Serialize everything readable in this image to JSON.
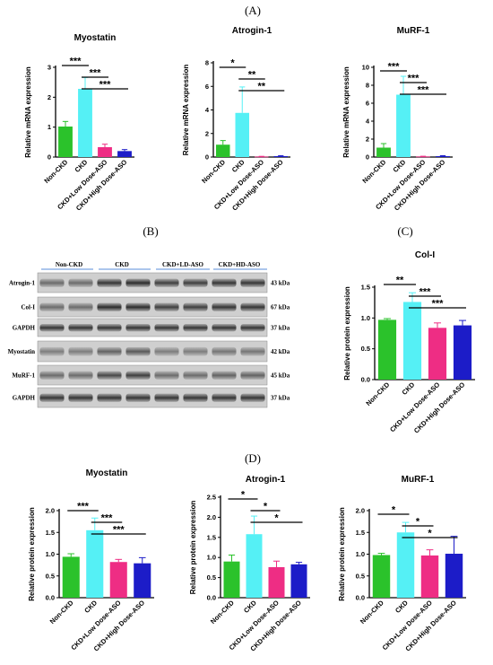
{
  "panel_labels": {
    "A": "(A)",
    "B": "(B)",
    "C": "(C)",
    "D": "(D)"
  },
  "colors": {
    "green": "#2bc22b",
    "cyan": "#55f0f5",
    "pink": "#ee2d84",
    "blue": "#1c1cc8"
  },
  "chart_data": [
    {
      "id": "A1",
      "type": "bar",
      "title": "Myostatin",
      "ylabel": "Relative mRNA expression",
      "categories": [
        "Non-CKD",
        "CKD",
        "CKD+Low Dose-ASO",
        "CKD+High Dose-ASO"
      ],
      "values": [
        1.02,
        2.28,
        0.33,
        0.2
      ],
      "errors": [
        0.17,
        0.38,
        0.1,
        0.05
      ],
      "ylim": [
        0,
        3
      ],
      "yticks": [
        0,
        1,
        2,
        3
      ],
      "significance": [
        {
          "from": 0,
          "to": 1,
          "label": "***"
        },
        {
          "from": 1,
          "to": 2,
          "label": "***"
        },
        {
          "from": 1,
          "to": 3,
          "label": "***"
        }
      ]
    },
    {
      "id": "A2",
      "type": "bar",
      "title": "Atrogin-1",
      "ylabel": "Relative mRNA expression",
      "categories": [
        "Non-CKD",
        "CKD",
        "CKD+Low Dose-ASO",
        "CKD+High Dose-ASO"
      ],
      "values": [
        1.05,
        3.75,
        0.04,
        0.08
      ],
      "errors": [
        0.35,
        2.2,
        0.02,
        0.04
      ],
      "ylim": [
        0,
        8
      ],
      "yticks": [
        0,
        2,
        4,
        6,
        8
      ],
      "significance": [
        {
          "from": 0,
          "to": 1,
          "label": "*"
        },
        {
          "from": 1,
          "to": 2,
          "label": "**"
        },
        {
          "from": 1,
          "to": 3,
          "label": "**"
        }
      ]
    },
    {
      "id": "A3",
      "type": "bar",
      "title": "MuRF-1",
      "ylabel": "Relative mRNA expression",
      "categories": [
        "Non-CKD",
        "CKD",
        "CKD+Low Dose-ASO",
        "CKD+High Dose-ASO"
      ],
      "values": [
        1.05,
        6.95,
        0.06,
        0.1
      ],
      "errors": [
        0.45,
        2.05,
        0.03,
        0.05
      ],
      "ylim": [
        0,
        10
      ],
      "yticks": [
        0,
        2,
        4,
        6,
        8,
        10
      ],
      "significance": [
        {
          "from": 0,
          "to": 1,
          "label": "***"
        },
        {
          "from": 1,
          "to": 2,
          "label": "***"
        },
        {
          "from": 1,
          "to": 3,
          "label": "***"
        }
      ]
    },
    {
      "id": "C",
      "type": "bar",
      "title": "Col-I",
      "ylabel": "Relative protein expression",
      "categories": [
        "Non-CKD",
        "CKD",
        "CKD+Low Dose-ASO",
        "CKD+High Dose-ASO"
      ],
      "values": [
        0.97,
        1.26,
        0.84,
        0.88
      ],
      "errors": [
        0.02,
        0.15,
        0.08,
        0.08
      ],
      "ylim": [
        0,
        1.5
      ],
      "yticks": [
        0.0,
        0.5,
        1.0,
        1.5
      ],
      "significance": [
        {
          "from": 0,
          "to": 1,
          "label": "**"
        },
        {
          "from": 1,
          "to": 2,
          "label": "***"
        },
        {
          "from": 1,
          "to": 3,
          "label": "***"
        }
      ]
    },
    {
      "id": "D1",
      "type": "bar",
      "title": "Myostatin",
      "ylabel": "Relative protein expression",
      "categories": [
        "Non-CKD",
        "CKD",
        "CKD+Low Dose-ASO",
        "CKD+High Dose-ASO"
      ],
      "values": [
        0.94,
        1.55,
        0.82,
        0.79
      ],
      "errors": [
        0.07,
        0.28,
        0.06,
        0.13
      ],
      "ylim": [
        0,
        2.0
      ],
      "yticks": [
        0.0,
        0.5,
        1.0,
        1.5,
        2.0
      ],
      "significance": [
        {
          "from": 0,
          "to": 1,
          "label": "***"
        },
        {
          "from": 1,
          "to": 2,
          "label": "***"
        },
        {
          "from": 1,
          "to": 3,
          "label": "***"
        }
      ]
    },
    {
      "id": "D2",
      "type": "bar",
      "title": "Atrogin-1",
      "ylabel": "Relative protein expression",
      "categories": [
        "Non-CKD",
        "CKD",
        "CKD+Low Dose-ASO",
        "CKD+High Dose-ASO"
      ],
      "values": [
        0.9,
        1.58,
        0.76,
        0.83
      ],
      "errors": [
        0.16,
        0.45,
        0.15,
        0.05
      ],
      "ylim": [
        0,
        2.5
      ],
      "yticks": [
        0.0,
        0.5,
        1.0,
        1.5,
        2.0,
        2.5
      ],
      "significance": [
        {
          "from": 0,
          "to": 1,
          "label": "*"
        },
        {
          "from": 1,
          "to": 2,
          "label": "*"
        },
        {
          "from": 1,
          "to": 3,
          "label": "*"
        }
      ]
    },
    {
      "id": "D3",
      "type": "bar",
      "title": "MuRF-1",
      "ylabel": "Relative protein expression",
      "categories": [
        "Non-CKD",
        "CKD",
        "CKD+Low Dose-ASO",
        "CKD+High Dose-ASO"
      ],
      "values": [
        0.98,
        1.5,
        0.97,
        1.01
      ],
      "errors": [
        0.04,
        0.23,
        0.13,
        0.4
      ],
      "ylim": [
        0,
        2.0
      ],
      "yticks": [
        0.0,
        0.5,
        1.0,
        1.5,
        2.0
      ],
      "significance": [
        {
          "from": 0,
          "to": 1,
          "label": "*"
        },
        {
          "from": 1,
          "to": 2,
          "label": "*"
        },
        {
          "from": 1,
          "to": 3,
          "label": "*"
        }
      ]
    }
  ],
  "western_blot": {
    "groups": [
      "Non-CKD",
      "CKD",
      "CKD+LD-ASO",
      "CKD+HD-ASO"
    ],
    "rows": [
      {
        "protein": "Atrogin-1",
        "size": "43 kDa"
      },
      {
        "protein": "Col-I",
        "size": "67 kDa"
      },
      {
        "protein": "GAPDH",
        "size": "37 kDa"
      },
      {
        "protein": "Myostatin",
        "size": "42 kDa"
      },
      {
        "protein": "MuRF-1",
        "size": "45 kDa"
      },
      {
        "protein": "GAPDH",
        "size": "37 kDa"
      }
    ]
  }
}
